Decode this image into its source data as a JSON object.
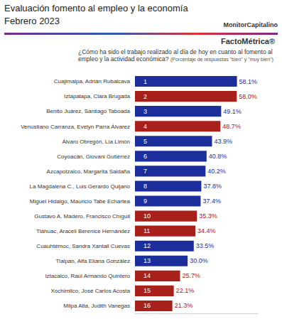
{
  "chart_data": {
    "type": "bar",
    "orientation": "horizontal",
    "title": "Evaluación fomento al empleo y la economía",
    "subtitle": "Febrero 2023",
    "question": "¿Cómo ha sido el trabajo realizado al día de hoy en cuanto al fomento al empleo y la actividad económica?",
    "note": "(Porcentaje de respuestas \"bien\" y \"muy bien\")",
    "brands": [
      "MonitorCapitalino",
      "FactoMétrica®"
    ],
    "categories": [
      "Cuajimalpa, Adrián Rubalcava",
      "Iztapalapa, Clara Brugada",
      "Benito Juárez, Santiago Taboada",
      "Venustiano Carranza, Evelyn Parra Álvarez",
      "Álvaro Obregón, Lía Limón",
      "Coyoacán, Giovani Gutiérrez",
      "Azcapotzalco, Margarita Saldaña",
      "La Magdalena C., Luis Gerardo Quijano",
      "Miguel Hidalgo, Mauricio Tabe Echartea",
      "Gustavo A. Madero, Francisco Chíguil",
      "Tláhuac, Araceli Berenice Hernández",
      "Cuauhtémoc, Sandra Xantall Cuevas",
      "Tlalpan, Alfa Eliana González",
      "Iztacalco, Raúl Armando Quintero",
      "Xochimilco, José Carlos Acosta",
      "Milpa Alta, Judith Vanegas"
    ],
    "values": [
      58.1,
      58.0,
      49.1,
      48.7,
      43.9,
      40.8,
      40.2,
      37.8,
      37.4,
      35.3,
      34.4,
      33.5,
      30.0,
      25.7,
      22.1,
      21.3
    ],
    "value_labels": [
      "58.1%",
      "58.0%",
      "49.1%",
      "48.7%",
      "43.9%",
      "40.8%",
      "40.2%",
      "37.8%",
      "37.4%",
      "35.3%",
      "34.4%",
      "33.5%",
      "30.0%",
      "25.7%",
      "22.1%",
      "21.3%"
    ],
    "ranks": [
      1,
      2,
      3,
      4,
      5,
      6,
      7,
      8,
      9,
      10,
      11,
      12,
      13,
      14,
      15,
      16
    ],
    "colors": [
      "#1c2e9c",
      "#a8201a",
      "#1c2e9c",
      "#a8201a",
      "#1c2e9c",
      "#1c2e9c",
      "#1c2e9c",
      "#1c2e9c",
      "#1c2e9c",
      "#a8201a",
      "#a8201a",
      "#1c2e9c",
      "#1c2e9c",
      "#a8201a",
      "#a8201a",
      "#a8201a"
    ],
    "xlim": [
      0,
      70
    ],
    "xticks": [],
    "data_labels": true,
    "tick_labels": "y",
    "grid": false
  }
}
